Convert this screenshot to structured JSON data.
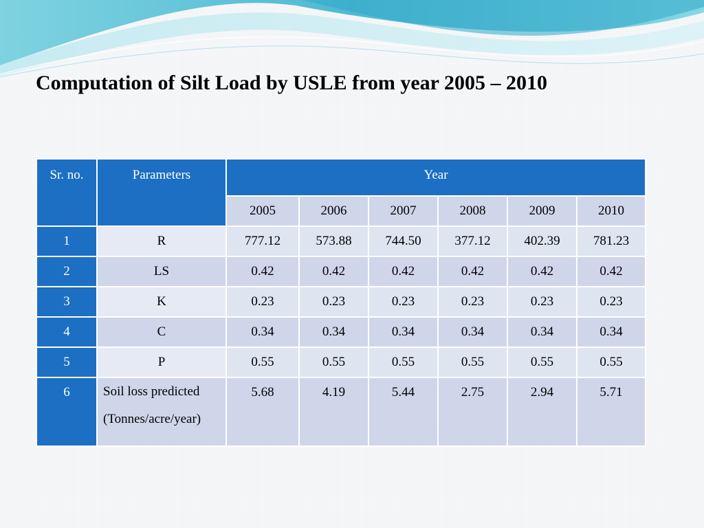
{
  "slide": {
    "title": "Computation of Silt Load by USLE from year 2005 – 2010"
  },
  "table": {
    "header": {
      "srno_label": "Sr. no.",
      "param_label": "Parameters",
      "year_label": "Year",
      "years": [
        "2005",
        "2006",
        "2007",
        "2008",
        "2009",
        "2010"
      ]
    },
    "rows": [
      {
        "sr": "1",
        "param": "R",
        "values": [
          "777.12",
          "573.88",
          "744.50",
          "377.12",
          "402.39",
          "781.23"
        ]
      },
      {
        "sr": "2",
        "param": "LS",
        "values": [
          "0.42",
          "0.42",
          "0.42",
          "0.42",
          "0.42",
          "0.42"
        ]
      },
      {
        "sr": "3",
        "param": "K",
        "values": [
          "0.23",
          "0.23",
          "0.23",
          "0.23",
          "0.23",
          "0.23"
        ]
      },
      {
        "sr": "4",
        "param": "C",
        "values": [
          "0.34",
          "0.34",
          "0.34",
          "0.34",
          "0.34",
          "0.34"
        ]
      },
      {
        "sr": "5",
        "param": "P",
        "values": [
          "0.55",
          "0.55",
          "0.55",
          "0.55",
          "0.55",
          "0.55"
        ]
      },
      {
        "sr": "6",
        "param_line1": "Soil loss predicted",
        "param_line2": "(Tonnes/acre/year)",
        "values": [
          "5.68",
          "4.19",
          "5.44",
          "2.75",
          "2.94",
          "5.71"
        ]
      }
    ]
  },
  "colors": {
    "header_blue": "#1c6fc2",
    "cell_dark": "#cfd6ea",
    "cell_light": "#dfe4f1",
    "wave_teal": "#5bc6d6"
  }
}
